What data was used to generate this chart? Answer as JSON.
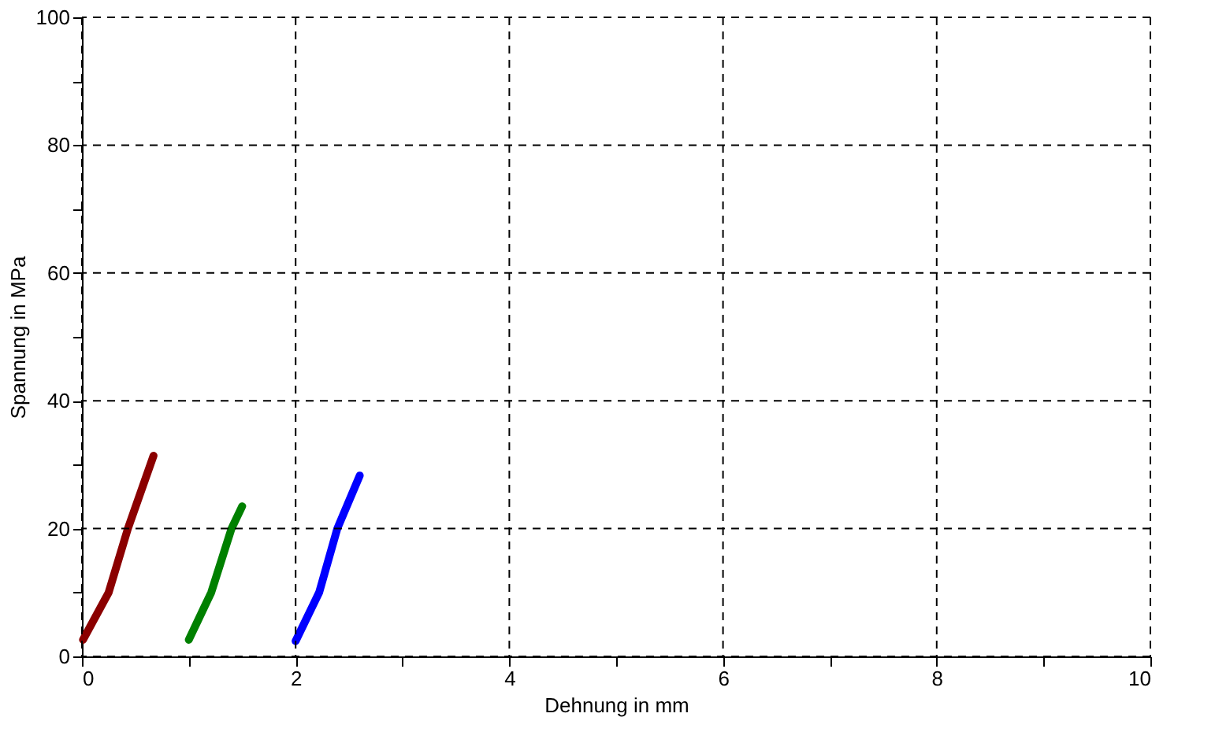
{
  "chart_data": {
    "type": "line",
    "xlabel": "Dehnung in mm",
    "ylabel": "Spannung in MPa",
    "xlim": [
      0,
      10
    ],
    "ylim": [
      0,
      100
    ],
    "xticks": [
      0,
      {
        "value": 1,
        "label": null
      },
      2,
      {
        "value": 3,
        "label": null
      },
      4,
      {
        "value": 5,
        "label": null
      },
      6,
      {
        "value": 7,
        "label": null
      },
      8,
      {
        "value": 9,
        "label": null
      },
      10
    ],
    "yticks": [
      0,
      {
        "value": 10,
        "label": null
      },
      20,
      {
        "value": 30,
        "label": null
      },
      40,
      {
        "value": 50,
        "label": null
      },
      60,
      {
        "value": 70,
        "label": null
      },
      80,
      {
        "value": 90,
        "label": null
      },
      100
    ],
    "grid": true,
    "line_style": "solid",
    "marker": "none",
    "series": [
      {
        "color": "#8b0000",
        "x": [
          0.01,
          0.25,
          0.43,
          0.67
        ],
        "values": [
          2.6,
          10,
          20,
          31.4
        ]
      },
      {
        "color": "#008000",
        "x": [
          1.0,
          1.21,
          1.4,
          1.5
        ],
        "values": [
          2.6,
          10,
          20,
          23.5
        ]
      },
      {
        "color": "#0000ff",
        "x": [
          2.0,
          2.22,
          2.39,
          2.6
        ],
        "values": [
          2.4,
          10,
          20,
          28.3
        ]
      }
    ]
  }
}
